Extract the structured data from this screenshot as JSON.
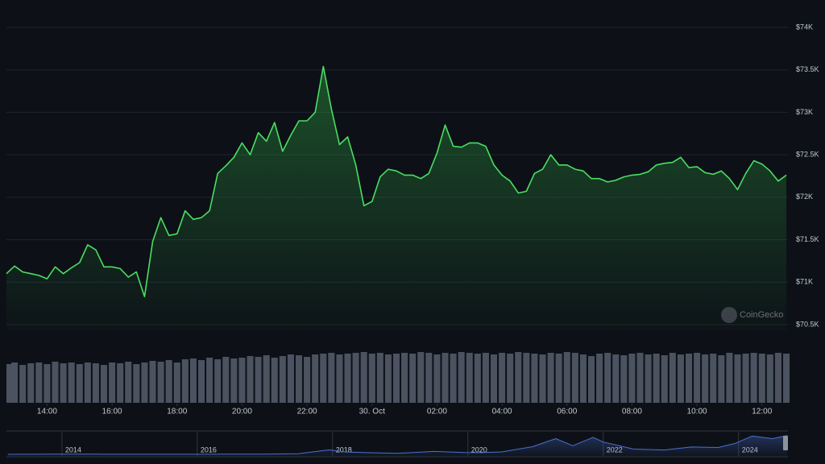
{
  "chart_data": [
    {
      "type": "line",
      "x": [
        12.75,
        13,
        13.25,
        13.5,
        13.75,
        14,
        14.25,
        14.5,
        14.75,
        15,
        15.25,
        15.5,
        15.75,
        16,
        16.25,
        16.5,
        16.75,
        17,
        17.25,
        17.5,
        17.75,
        18,
        18.25,
        18.5,
        18.75,
        19,
        19.25,
        19.5,
        19.75,
        20,
        20.25,
        20.5,
        20.75,
        21,
        21.25,
        21.5,
        21.75,
        22,
        22.25,
        22.5,
        22.75,
        23,
        23.25,
        23.5,
        23.75,
        24,
        24.25,
        24.5,
        24.75,
        25,
        25.25,
        25.5,
        25.75,
        26,
        26.25,
        26.5,
        26.75,
        27,
        27.25,
        27.5,
        27.75,
        28,
        28.25,
        28.5,
        28.75,
        29,
        29.25,
        29.5,
        29.75,
        30,
        30.25,
        30.5,
        30.75,
        31,
        31.25,
        31.5,
        31.75,
        32,
        32.25,
        32.5,
        32.75,
        33,
        33.25,
        33.5,
        33.75,
        34,
        34.25,
        34.5,
        34.75,
        35,
        35.25,
        35.5,
        35.75,
        36,
        36.25,
        36.5,
        36.75
      ],
      "series": [
        {
          "color": "#4ade62",
          "values": [
            71100,
            71190,
            71120,
            71100,
            71080,
            71040,
            71180,
            71100,
            71170,
            71230,
            71440,
            71380,
            71180,
            71180,
            71160,
            71060,
            71120,
            70830,
            71480,
            71760,
            71550,
            71570,
            71840,
            71740,
            71760,
            71840,
            72280,
            72370,
            72470,
            72640,
            72500,
            72760,
            72660,
            72880,
            72540,
            72730,
            72900,
            72900,
            73000,
            73540,
            73040,
            72620,
            72710,
            72380,
            71900,
            71950,
            72240,
            72330,
            72310,
            72260,
            72260,
            72220,
            72280,
            72520,
            72850,
            72600,
            72590,
            72640,
            72640,
            72600,
            72380,
            72260,
            72190,
            72050,
            72070,
            72280,
            72330,
            72500,
            72380,
            72380,
            72330,
            72310,
            72220,
            72220,
            72180,
            72200,
            72240,
            72260,
            72270,
            72300,
            72380,
            72400,
            72410,
            72470,
            72350,
            72360,
            72290,
            72270,
            72310,
            72220,
            72090,
            72280,
            72430,
            72390,
            72310,
            72190,
            72260
          ]
        },
        {
          "color": "#4b5260",
          "type": "bar",
          "axis": "y2",
          "values": [
            48,
            50,
            47,
            49,
            50,
            48,
            51,
            49,
            50,
            48,
            50,
            49,
            47,
            50,
            49,
            51,
            48,
            50,
            52,
            51,
            53,
            50,
            54,
            55,
            53,
            56,
            54,
            57,
            55,
            56,
            58,
            57,
            59,
            56,
            58,
            60,
            59,
            57,
            60,
            61,
            62,
            60,
            61,
            62,
            63,
            61,
            62,
            60,
            61,
            62,
            61,
            63,
            62,
            60,
            62,
            61,
            63,
            62,
            61,
            62,
            60,
            62,
            61,
            63,
            62,
            61,
            60,
            62,
            61,
            63,
            62,
            60,
            58,
            61,
            62,
            60,
            59,
            61,
            62,
            60,
            61,
            59,
            62,
            60,
            61,
            62,
            60,
            61,
            59,
            62,
            60,
            61,
            62,
            61,
            60,
            62,
            61
          ]
        }
      ],
      "xlim": [
        12.75,
        36.75
      ],
      "xticks": [
        {
          "value": 14,
          "label": "14:00"
        },
        {
          "value": 16,
          "label": "16:00"
        },
        {
          "value": 18,
          "label": "18:00"
        },
        {
          "value": 20,
          "label": "20:00"
        },
        {
          "value": 22,
          "label": "22:00"
        },
        {
          "value": 24,
          "label": "30. Oct"
        },
        {
          "value": 26,
          "label": "02:00"
        },
        {
          "value": 28,
          "label": "04:00"
        },
        {
          "value": 30,
          "label": "06:00"
        },
        {
          "value": 32,
          "label": "08:00"
        },
        {
          "value": 34,
          "label": "10:00"
        },
        {
          "value": 36,
          "label": "12:00"
        }
      ],
      "ylim": [
        70500,
        74000
      ],
      "yticks": [
        {
          "value": 70500,
          "label": "$70.5K"
        },
        {
          "value": 71000,
          "label": "$71K"
        },
        {
          "value": 71500,
          "label": "$71.5K"
        },
        {
          "value": 72000,
          "label": "$72K"
        },
        {
          "value": 72500,
          "label": "$72.5K"
        },
        {
          "value": 73000,
          "label": "$73K"
        },
        {
          "value": 73500,
          "label": "$73.5K"
        },
        {
          "value": 74000,
          "label": "$74K"
        }
      ],
      "y2lim": [
        0,
        70
      ],
      "grid": true,
      "watermark": "CoinGecko"
    },
    {
      "type": "line",
      "x": [
        2013.2,
        2013.9,
        2014.5,
        2015,
        2015.5,
        2016,
        2016.5,
        2017,
        2017.5,
        2017.95,
        2018.2,
        2018.5,
        2018.95,
        2019.5,
        2019.95,
        2020.2,
        2020.5,
        2020.95,
        2021.3,
        2021.55,
        2021.85,
        2022,
        2022.45,
        2022.9,
        2023.3,
        2023.7,
        2023.95,
        2024.2,
        2024.5,
        2024.72
      ],
      "values": [
        100,
        1000,
        600,
        300,
        250,
        430,
        650,
        1000,
        2500,
        17000,
        9000,
        6500,
        3700,
        11000,
        7200,
        6500,
        9200,
        29000,
        60000,
        33000,
        65000,
        47000,
        20000,
        16500,
        28000,
        26000,
        42000,
        70000,
        60000,
        72000
      ],
      "color": "#4a6fd1",
      "xlim": [
        2013.18,
        2024.73
      ],
      "xticks": [
        2014,
        2016,
        2018,
        2020,
        2022,
        2024
      ],
      "ylim": [
        0,
        80000
      ]
    }
  ]
}
